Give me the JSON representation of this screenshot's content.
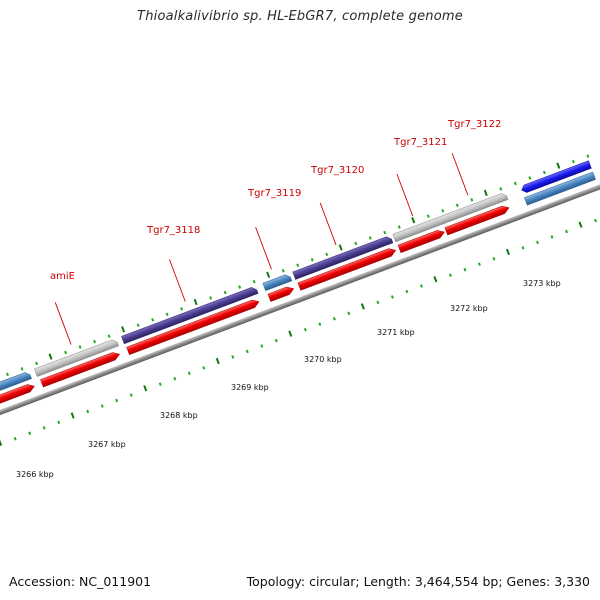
{
  "title": "Thioalkalivibrio sp. HL-EbGR7, complete genome",
  "footer": {
    "accession": "Accession: NC_011901",
    "summary": "Topology: circular; Length: 3,464,554 bp; Genes: 3,330"
  },
  "gene_labels": [
    "amiE",
    "Tgr7_3118",
    "Tgr7_3119",
    "Tgr7_3120",
    "Tgr7_3121",
    "Tgr7_3122"
  ],
  "position_labels": [
    "3266 kbp",
    "3267 kbp",
    "3268 kbp",
    "3269 kbp",
    "3270 kbp",
    "3271 kbp",
    "3272 kbp",
    "3273 kbp"
  ],
  "colors": {
    "cds": "#ee0000",
    "gene_gray": "#c4c4c4",
    "gene_purple": "#4a3d8f",
    "gene_steelblue": "#4a86c0",
    "gene_blue": "#1a1aee",
    "backbone": "#8a8a8a",
    "tick_major": "#117711",
    "tick_minor": "#22aa22",
    "label": "#cc0000"
  }
}
